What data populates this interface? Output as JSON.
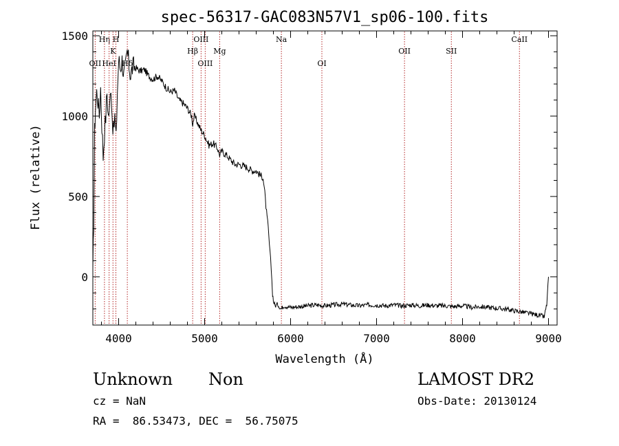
{
  "chart_data": {
    "type": "line",
    "title": "spec-56317-GAC083N57V1_sp06-100.fits",
    "xlabel": "Wavelength (Å)",
    "ylabel": "Flux (relative)",
    "xlim": [
      3700,
      9100
    ],
    "ylim": [
      -300,
      1530
    ],
    "xticks": [
      4000,
      5000,
      6000,
      7000,
      8000,
      9000
    ],
    "yticks": [
      0,
      500,
      1000,
      1500
    ],
    "grid": false,
    "line_color": "#000000",
    "marker_color": "#b22222",
    "series": [
      {
        "x": [
          3700,
          3710,
          3720,
          3730,
          3745,
          3760,
          3775,
          3790,
          3805,
          3820,
          3835,
          3850,
          3865,
          3880,
          3895,
          3910,
          3925,
          3940,
          3955,
          3970,
          3985,
          4000,
          4020,
          4040,
          4060,
          4080,
          4100,
          4120,
          4140,
          4160,
          4180,
          4200,
          4250,
          4300,
          4350,
          4400,
          4450,
          4500,
          4550,
          4600,
          4650,
          4700,
          4750,
          4800,
          4850,
          4861,
          4880,
          4900,
          4950,
          5000,
          5050,
          5100,
          5150,
          5175,
          5200,
          5250,
          5300,
          5350,
          5400,
          5450,
          5500,
          5550,
          5600,
          5650,
          5680,
          5700,
          5720,
          5740,
          5760,
          5775,
          5790,
          5800,
          5820,
          5850,
          5890,
          5920,
          6000,
          6100,
          6200,
          6300,
          6400,
          6500,
          6600,
          6700,
          6800,
          6900,
          7000,
          7100,
          7200,
          7300,
          7400,
          7500,
          7600,
          7700,
          7800,
          7900,
          8000,
          8100,
          8200,
          8300,
          8400,
          8500,
          8600,
          8700,
          8800,
          8900,
          8950,
          8980,
          9000
        ],
        "y": [
          0,
          350,
          900,
          1050,
          1150,
          1100,
          1000,
          1180,
          950,
          750,
          900,
          1000,
          1150,
          1000,
          1050,
          1200,
          1000,
          900,
          1000,
          850,
          1150,
          1350,
          1300,
          1350,
          1250,
          1300,
          1400,
          1320,
          1250,
          1300,
          1310,
          1300,
          1280,
          1290,
          1250,
          1230,
          1250,
          1220,
          1180,
          1150,
          1160,
          1100,
          1080,
          1050,
          1000,
          950,
          1000,
          980,
          920,
          880,
          820,
          830,
          800,
          760,
          780,
          760,
          730,
          700,
          700,
          690,
          680,
          660,
          660,
          630,
          620,
          520,
          400,
          300,
          150,
          50,
          -100,
          -150,
          -180,
          -170,
          -200,
          -180,
          -190,
          -185,
          -180,
          -175,
          -180,
          -175,
          -170,
          -175,
          -180,
          -175,
          -175,
          -180,
          -175,
          -180,
          -175,
          -180,
          -175,
          -180,
          -180,
          -185,
          -180,
          -190,
          -185,
          -190,
          -195,
          -200,
          -210,
          -220,
          -230,
          -240,
          -250,
          -170,
          0
        ]
      }
    ],
    "line_markers": [
      {
        "label": "Hη",
        "wavelength": 3835,
        "row": "top"
      },
      {
        "label": "H",
        "wavelength": 3968,
        "row": "top"
      },
      {
        "label": "K",
        "wavelength": 3934,
        "row": "mid"
      },
      {
        "label": "OII",
        "wavelength": 3727,
        "row": "low"
      },
      {
        "label": "HeI",
        "wavelength": 3889,
        "row": "low"
      },
      {
        "label": "Hδ",
        "wavelength": 4101,
        "row": "low"
      },
      {
        "label": "OIII",
        "wavelength": 4959,
        "row": "top"
      },
      {
        "label": "Hβ",
        "wavelength": 4861,
        "row": "mid"
      },
      {
        "label": "OIII",
        "wavelength": 5007,
        "row": "low"
      },
      {
        "label": "Mg",
        "wavelength": 5175,
        "row": "mid"
      },
      {
        "label": "Na",
        "wavelength": 5893,
        "row": "top"
      },
      {
        "label": "OI",
        "wavelength": 6364,
        "row": "low"
      },
      {
        "label": "OII",
        "wavelength": 7325,
        "row": "mid"
      },
      {
        "label": "SII",
        "wavelength": 7870,
        "row": "mid"
      },
      {
        "label": "CaII",
        "wavelength": 8662,
        "row": "top"
      }
    ]
  },
  "footer": {
    "class_label": "Unknown",
    "subclass_label": "Non",
    "survey": "LAMOST DR2",
    "redshift": "cz = NaN",
    "obs_date": "Obs-Date: 20130124",
    "coords": "RA =  86.53473, DEC =  56.75075"
  }
}
